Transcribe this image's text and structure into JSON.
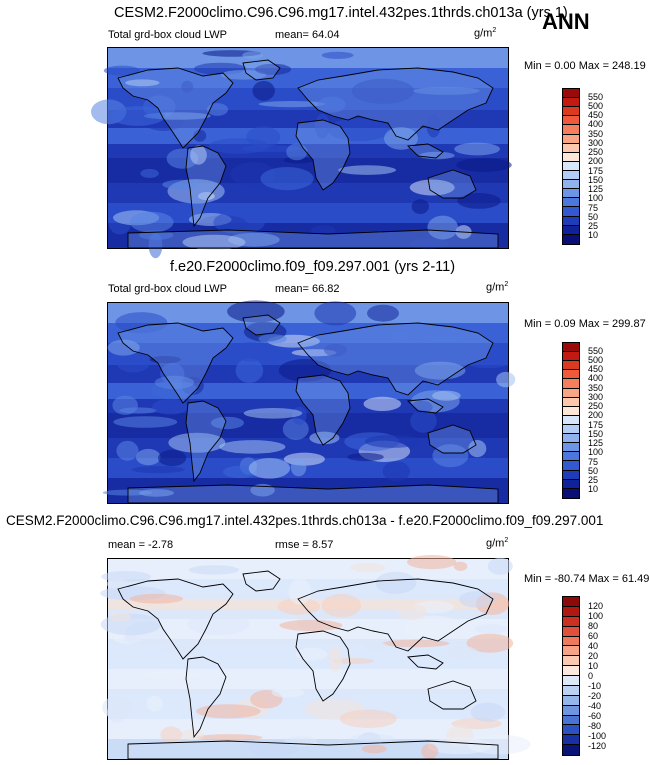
{
  "season": "ANN",
  "panels": [
    {
      "title": "CESM2.F2000climo.C96.C96.mg17.intel.432pes.1thrds.ch013a (yrs 1)",
      "left_label": "Total grd-box cloud LWP",
      "center_label": "mean=  64.04",
      "units": "g/m",
      "units_sup": "2",
      "minmax": "Min =   0.00 Max = 248.19",
      "colorbar": {
        "levels": [
          "550",
          "500",
          "450",
          "400",
          "350",
          "300",
          "250",
          "200",
          "175",
          "150",
          "125",
          "100",
          "75",
          "50",
          "25",
          "10"
        ],
        "colors": [
          "#9b0a0a",
          "#c21a10",
          "#dc3a20",
          "#ee5a3a",
          "#f47f5c",
          "#f8a584",
          "#fbc7ad",
          "#fde6d8",
          "#d7e6fb",
          "#b4cdf5",
          "#8fb2ee",
          "#6d95e6",
          "#4c77dc",
          "#3259cf",
          "#1f3db8",
          "#10229a",
          "#0a0f78"
        ]
      },
      "map_palette": [
        "#0b1a88",
        "#14269c",
        "#1d36b2",
        "#2a4cc8",
        "#3d66d8",
        "#5784e2",
        "#7aa2ea",
        "#a3c1f2",
        "#cfdff9"
      ]
    },
    {
      "title": "f.e20.F2000climo.f09_f09.297.001 (yrs 2-11)",
      "left_label": "Total grd-box cloud LWP",
      "center_label": "mean=  66.82",
      "units": "g/m",
      "units_sup": "2",
      "minmax": "Min =   0.09 Max = 299.87",
      "colorbar": {
        "levels": [
          "550",
          "500",
          "450",
          "400",
          "350",
          "300",
          "250",
          "200",
          "175",
          "150",
          "125",
          "100",
          "75",
          "50",
          "25",
          "10"
        ],
        "colors": [
          "#9b0a0a",
          "#c21a10",
          "#dc3a20",
          "#ee5a3a",
          "#f47f5c",
          "#f8a584",
          "#fbc7ad",
          "#fde6d8",
          "#d7e6fb",
          "#b4cdf5",
          "#8fb2ee",
          "#6d95e6",
          "#4c77dc",
          "#3259cf",
          "#1f3db8",
          "#10229a",
          "#0a0f78"
        ]
      },
      "map_palette": [
        "#0b1a88",
        "#14269c",
        "#1d36b2",
        "#2a4cc8",
        "#3d66d8",
        "#5784e2",
        "#7aa2ea",
        "#a3c1f2",
        "#cfdff9"
      ]
    },
    {
      "title": "CESM2.F2000climo.C96.C96.mg17.intel.432pes.1thrds.ch013a - f.e20.F2000climo.f09_f09.297.001",
      "left_label": "mean =  -2.78",
      "center_label": "rmse =   8.57",
      "units": "g/m",
      "units_sup": "2",
      "minmax": "Min = -80.74 Max = 61.49",
      "colorbar": {
        "levels": [
          "120",
          "100",
          "80",
          "60",
          "40",
          "20",
          "10",
          "0",
          "-10",
          "-20",
          "-40",
          "-60",
          "-80",
          "-100",
          "-120"
        ],
        "colors": [
          "#8c0a0a",
          "#b01812",
          "#cc3020",
          "#e0503a",
          "#ee7a5e",
          "#f6a286",
          "#fbc8b2",
          "#fde8de",
          "#dde8f8",
          "#bcd2f2",
          "#94b6ea",
          "#6e96e0",
          "#4a74d4",
          "#2c52c2",
          "#1730a2",
          "#0a1478"
        ]
      },
      "map_palette": [
        "#c8d9f6",
        "#dce8fa",
        "#e9f0fb",
        "#f3e3dc",
        "#f6cfc0",
        "#f2b4a0"
      ]
    }
  ]
}
